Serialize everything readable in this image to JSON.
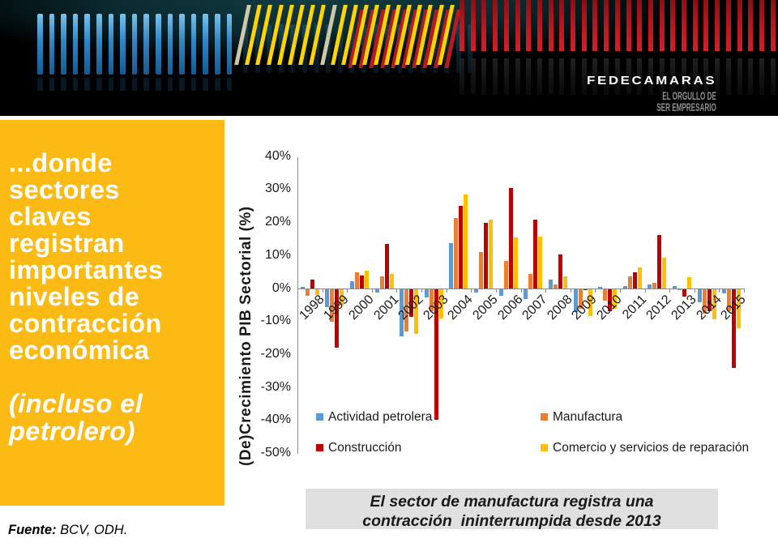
{
  "banner": {
    "brand": "FEDECAMARAS",
    "tagline_line1": "EL ORGULLO DE",
    "tagline_line2": "SER EMPRESARIO",
    "stripe_colors": {
      "blue": "#3E9BD6",
      "yellow": "#FFD400",
      "red": "#BE1622",
      "pale": "#CFC8A8"
    }
  },
  "sidebar": {
    "bg_color": "#FBBA14",
    "title_lines": [
      "...donde",
      "sectores",
      "claves",
      "registran",
      "importantes",
      "niveles de",
      "contracción",
      "económica"
    ],
    "subtitle_lines": [
      "(incluso el",
      "petrolero)"
    ]
  },
  "callout": {
    "line1": "El sector de manufactura registra una",
    "line2": "contracción  ininterrumpida desde 2013"
  },
  "footer": {
    "source_label": "Fuente:",
    "source_value": " BCV, ODH."
  },
  "chart_data": {
    "type": "bar",
    "title": "",
    "ylabel": "(De)Crecimiento PIB Sectorial (%)",
    "ylim": [
      -50,
      40
    ],
    "ytick_step": 10,
    "grid": false,
    "legend_position": "bottom, two columns",
    "categories": [
      1998,
      1999,
      2000,
      2001,
      2002,
      2003,
      2004,
      2005,
      2006,
      2007,
      2008,
      2009,
      2010,
      2011,
      2012,
      2013,
      2014,
      2015
    ],
    "series": [
      {
        "name": "Actividad petrolera",
        "color": "#5B9BD5",
        "values": [
          0.6,
          -5.3,
          2.2,
          -1.0,
          -14.2,
          -2.4,
          13.8,
          -1.0,
          -2.0,
          -3.0,
          2.6,
          -6.9,
          0.4,
          0.7,
          1.3,
          0.8,
          -3.9,
          -1.2
        ]
      },
      {
        "name": "Manufactura",
        "color": "#ED7D31",
        "values": [
          -1.9,
          -9.8,
          4.9,
          3.7,
          -12.9,
          -6.7,
          21.3,
          11.1,
          8.4,
          4.5,
          1.3,
          -6.0,
          -3.5,
          3.8,
          1.7,
          -0.3,
          -7.4,
          -6.7
        ]
      },
      {
        "name": "Construcción",
        "color": "#C00000",
        "values": [
          2.8,
          -17.8,
          3.9,
          13.5,
          -8.3,
          -39.5,
          25.1,
          19.9,
          30.6,
          20.8,
          10.4,
          -0.2,
          -6.7,
          4.8,
          16.3,
          -2.1,
          -6.7,
          -23.9
        ]
      },
      {
        "name": "Comercio y servicios de reparación",
        "color": "#FFC000",
        "values": [
          -1.6,
          -5.0,
          5.5,
          4.4,
          -13.4,
          -8.8,
          28.4,
          21.0,
          15.6,
          15.7,
          3.6,
          -8.2,
          -5.8,
          6.4,
          9.3,
          3.5,
          -9.0,
          -11.7
        ]
      }
    ]
  }
}
